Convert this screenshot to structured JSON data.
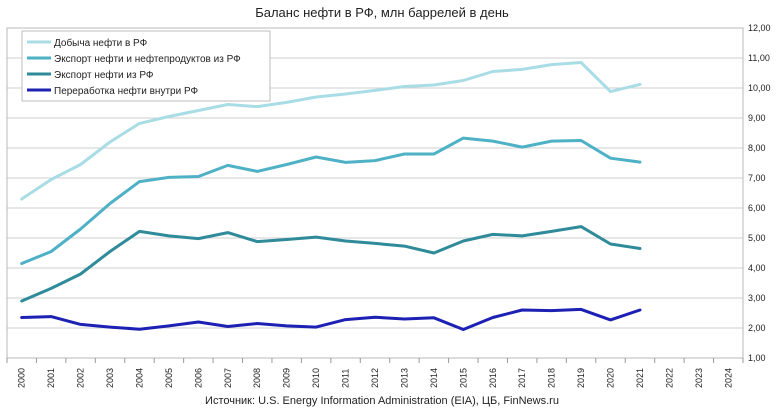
{
  "chart_data": {
    "type": "line",
    "title": "Баланс нефти в РФ, млн баррелей в день",
    "source": "Источник: U.S. Energy Information Administration (EIA), ЦБ, FinNews.ru",
    "x_ticks": [
      "2000",
      "2001",
      "2002",
      "2003",
      "2004",
      "2005",
      "2006",
      "2007",
      "2008",
      "2009",
      "2010",
      "2011",
      "2012",
      "2013",
      "2014",
      "2015",
      "2016",
      "2017",
      "2018",
      "2019",
      "2020",
      "2021",
      "2022",
      "2023",
      "2024"
    ],
    "y_ticks": [
      "1,00",
      "2,00",
      "3,00",
      "4,00",
      "5,00",
      "6,00",
      "7,00",
      "8,00",
      "9,00",
      "10,00",
      "11,00",
      "12,00"
    ],
    "ylim": [
      1,
      12
    ],
    "y_axis_position": "right",
    "grid": true,
    "legend_position": "top-left",
    "series": [
      {
        "name": "Добыча нефти в РФ",
        "color": "#a9dde6",
        "values": [
          6.3,
          6.95,
          7.45,
          8.2,
          8.82,
          9.05,
          9.25,
          9.45,
          9.38,
          9.52,
          9.7,
          9.8,
          9.92,
          10.05,
          10.1,
          10.25,
          10.55,
          10.62,
          10.78,
          10.85,
          9.88,
          10.12
        ]
      },
      {
        "name": "Экспорт нефти и нефтепродуктов из РФ",
        "color": "#4eb1c6",
        "values": [
          4.15,
          4.55,
          5.3,
          6.15,
          6.88,
          7.02,
          7.05,
          7.42,
          7.22,
          7.45,
          7.7,
          7.52,
          7.58,
          7.8,
          7.8,
          8.33,
          8.23,
          8.03,
          8.23,
          8.25,
          7.66,
          7.53
        ]
      },
      {
        "name": "Экспорт нефти из РФ",
        "color": "#2f8b9a",
        "values": [
          2.9,
          3.32,
          3.8,
          4.55,
          5.22,
          5.07,
          4.98,
          5.18,
          4.88,
          4.95,
          5.03,
          4.9,
          4.82,
          4.73,
          4.5,
          4.9,
          5.12,
          5.07,
          5.22,
          5.38,
          4.8,
          4.65
        ]
      },
      {
        "name": "Переработка нефти внутри РФ",
        "color": "#1c21b4",
        "values": [
          2.35,
          2.38,
          2.12,
          2.03,
          1.96,
          2.07,
          2.2,
          2.05,
          2.15,
          2.07,
          2.03,
          2.28,
          2.36,
          2.3,
          2.34,
          1.95,
          2.35,
          2.6,
          2.58,
          2.62,
          2.27,
          2.6
        ]
      }
    ]
  }
}
